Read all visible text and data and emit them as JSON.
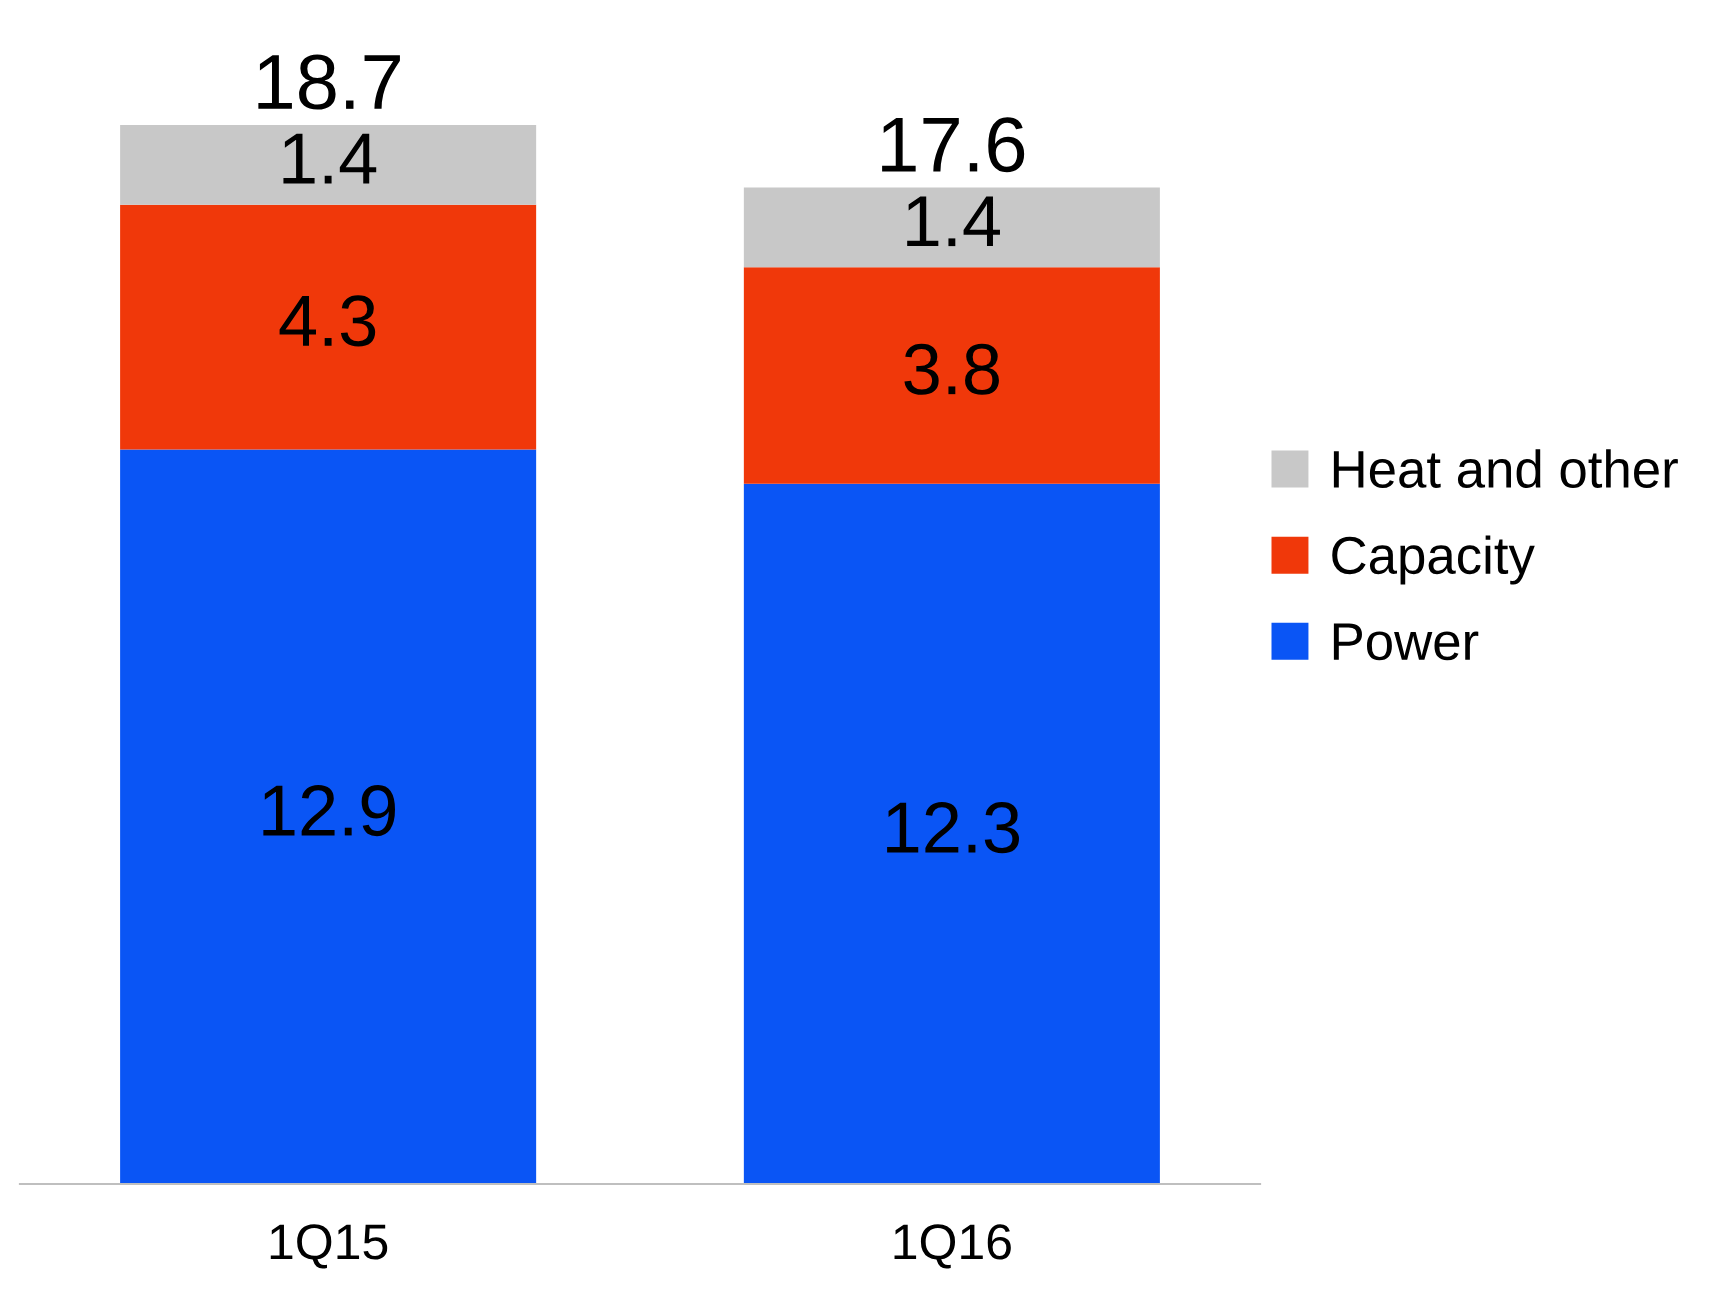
{
  "chart_data": {
    "type": "bar",
    "stacked": true,
    "categories": [
      "1Q15",
      "1Q16"
    ],
    "series": [
      {
        "name": "Power",
        "color": "#0a55f5",
        "values": [
          12.9,
          12.3
        ]
      },
      {
        "name": "Capacity",
        "color": "#f0380a",
        "values": [
          4.3,
          3.8
        ]
      },
      {
        "name": "Heat and other",
        "color": "#c8c8c8",
        "values": [
          1.4,
          1.4
        ]
      }
    ],
    "data_labels": true,
    "totals": [
      "18.7",
      "17.6"
    ],
    "legend": "right",
    "grid": false,
    "tick_labels": "x"
  }
}
